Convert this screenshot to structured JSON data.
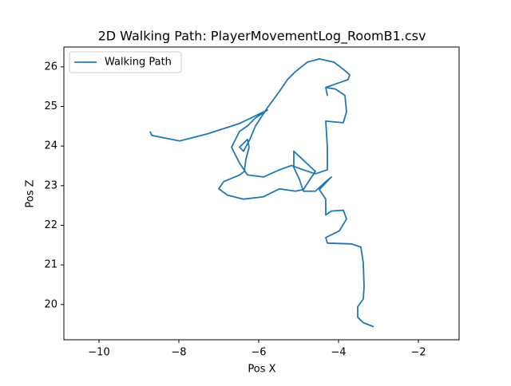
{
  "chart_data": {
    "type": "line",
    "title": "2D Walking Path: PlayerMovementLog_RoomB1.csv",
    "x_label": "Pos X",
    "y_label": "Pos Z",
    "series": [
      {
        "name": "Walking Path",
        "color": "#1f77b4",
        "x": [
          -8.72,
          -8.68,
          -7.98,
          -7.28,
          -6.48,
          -5.78,
          -6.08,
          -6.28,
          -6.48,
          -6.68,
          -6.48,
          -6.28,
          -5.88,
          -5.48,
          -5.18,
          -4.88,
          -4.58,
          -4.28,
          -4.28,
          -4.32,
          -3.88,
          -3.8,
          -3.84,
          -4.08,
          -4.32,
          -4.28,
          -4.32,
          -3.98,
          -3.76,
          -3.72,
          -3.88,
          -4.12,
          -4.48,
          -4.78,
          -5.08,
          -5.28,
          -5.48,
          -5.78,
          -6.08,
          -6.22,
          -6.38,
          -6.48,
          -6.28,
          -6.24,
          -6.32,
          -6.36,
          -6.48,
          -6.88,
          -7.0,
          -6.78,
          -6.38,
          -5.88,
          -5.48,
          -5.08,
          -4.88,
          -4.78,
          -4.58,
          -5.12,
          -5.12,
          -4.98,
          -4.88,
          -4.58,
          -4.32,
          -4.18,
          -4.48,
          -4.32,
          -4.32,
          -4.18,
          -3.88,
          -3.8,
          -3.98,
          -4.32,
          -4.28,
          -3.68,
          -3.44,
          -3.38,
          -3.36,
          -3.38,
          -3.52,
          -3.52,
          -3.38,
          -3.12
        ],
        "values": [
          24.37,
          24.27,
          24.13,
          24.31,
          24.57,
          24.91,
          24.71,
          24.51,
          24.37,
          23.97,
          23.57,
          23.27,
          23.22,
          23.4,
          23.51,
          23.4,
          23.3,
          23.4,
          23.97,
          24.63,
          24.59,
          24.87,
          25.28,
          25.44,
          25.48,
          25.28,
          25.48,
          25.6,
          25.68,
          25.8,
          25.94,
          26.12,
          26.2,
          26.12,
          25.88,
          25.68,
          25.38,
          24.97,
          24.51,
          24.17,
          23.87,
          23.97,
          24.17,
          23.97,
          23.67,
          23.36,
          23.27,
          23.1,
          22.92,
          22.76,
          22.66,
          22.72,
          22.92,
          22.86,
          22.9,
          23.06,
          23.36,
          23.87,
          23.46,
          23.16,
          22.86,
          22.86,
          23.1,
          23.22,
          22.9,
          22.66,
          22.26,
          22.36,
          22.38,
          22.16,
          21.86,
          21.69,
          21.55,
          21.53,
          21.45,
          21.05,
          20.45,
          20.14,
          19.94,
          19.68,
          19.54,
          19.44
        ]
      }
    ],
    "xlim": [
      -10.88,
      -0.98
    ],
    "ylim": [
      19.11,
      26.5
    ],
    "xticks": [
      {
        "value": -10,
        "label": "−10"
      },
      {
        "value": -8,
        "label": "−8"
      },
      {
        "value": -6,
        "label": "−6"
      },
      {
        "value": -4,
        "label": "−4"
      },
      {
        "value": -2,
        "label": "−2"
      }
    ],
    "yticks": [
      20,
      21,
      22,
      23,
      24,
      25,
      26
    ],
    "legend": "upper-left"
  }
}
